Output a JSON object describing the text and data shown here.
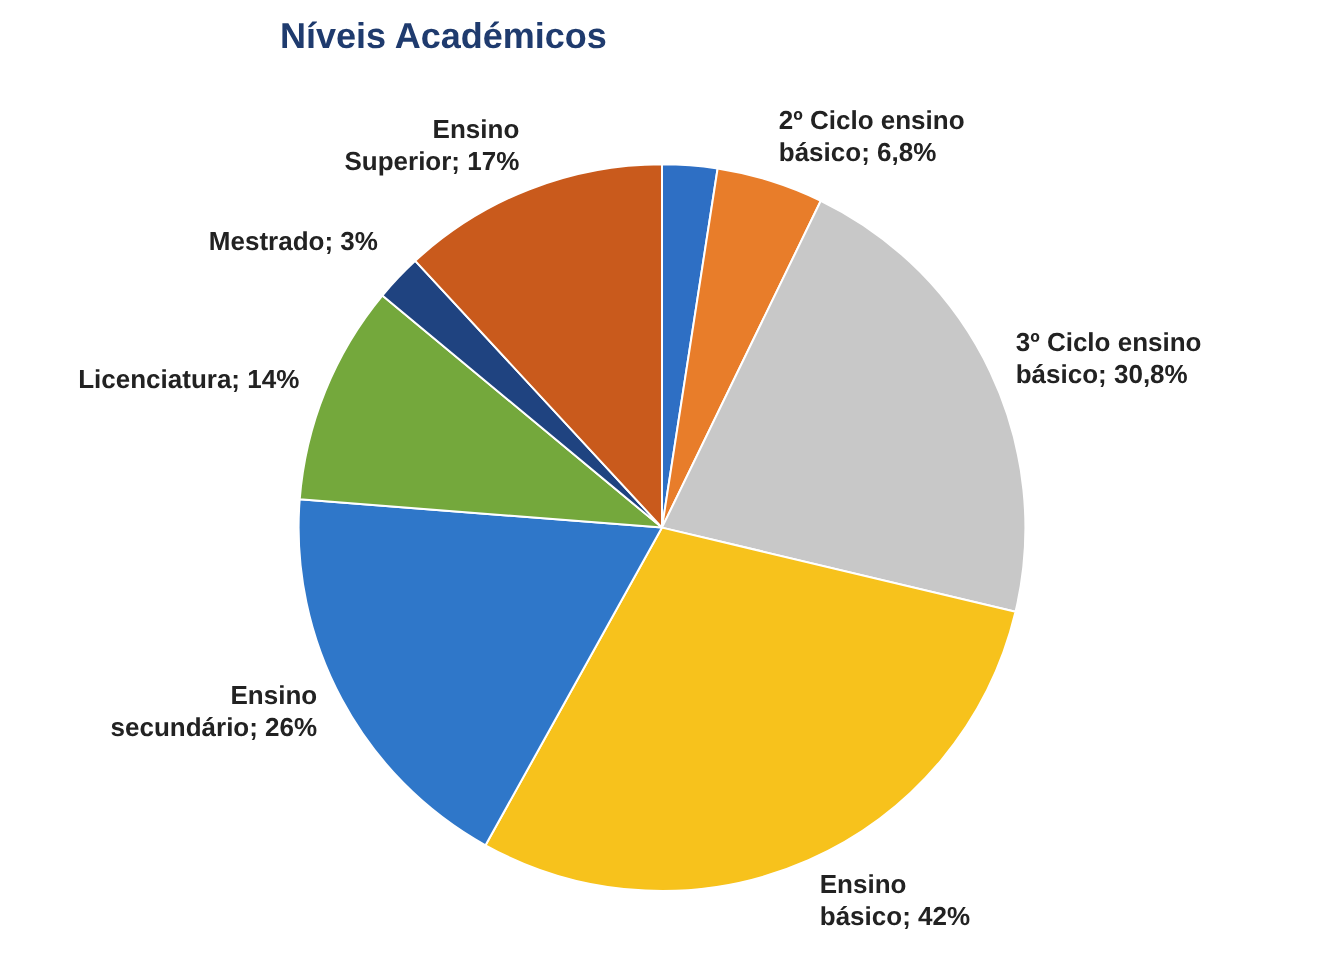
{
  "chart_data": {
    "type": "pie",
    "title": "Níveis Académicos",
    "categories": [
      null,
      "2º Ciclo ensino básico",
      "3º Ciclo ensino básico",
      "Ensino básico",
      "Ensino secundário",
      "Licenciatura",
      "Mestrado",
      "Ensino Superior"
    ],
    "values": [
      3.5,
      6.8,
      30.8,
      42,
      26,
      14,
      3,
      17
    ],
    "value_labels": [
      null,
      "6,8%",
      "30,8%",
      "42%",
      "26%",
      "14%",
      "3%",
      "17%"
    ],
    "colors": [
      "#2e6fc4",
      "#e87d2a",
      "#c8c8c8",
      "#f7c21c",
      "#2f77c9",
      "#74a83c",
      "#1f4380",
      "#c95a1c"
    ],
    "legend": false
  }
}
